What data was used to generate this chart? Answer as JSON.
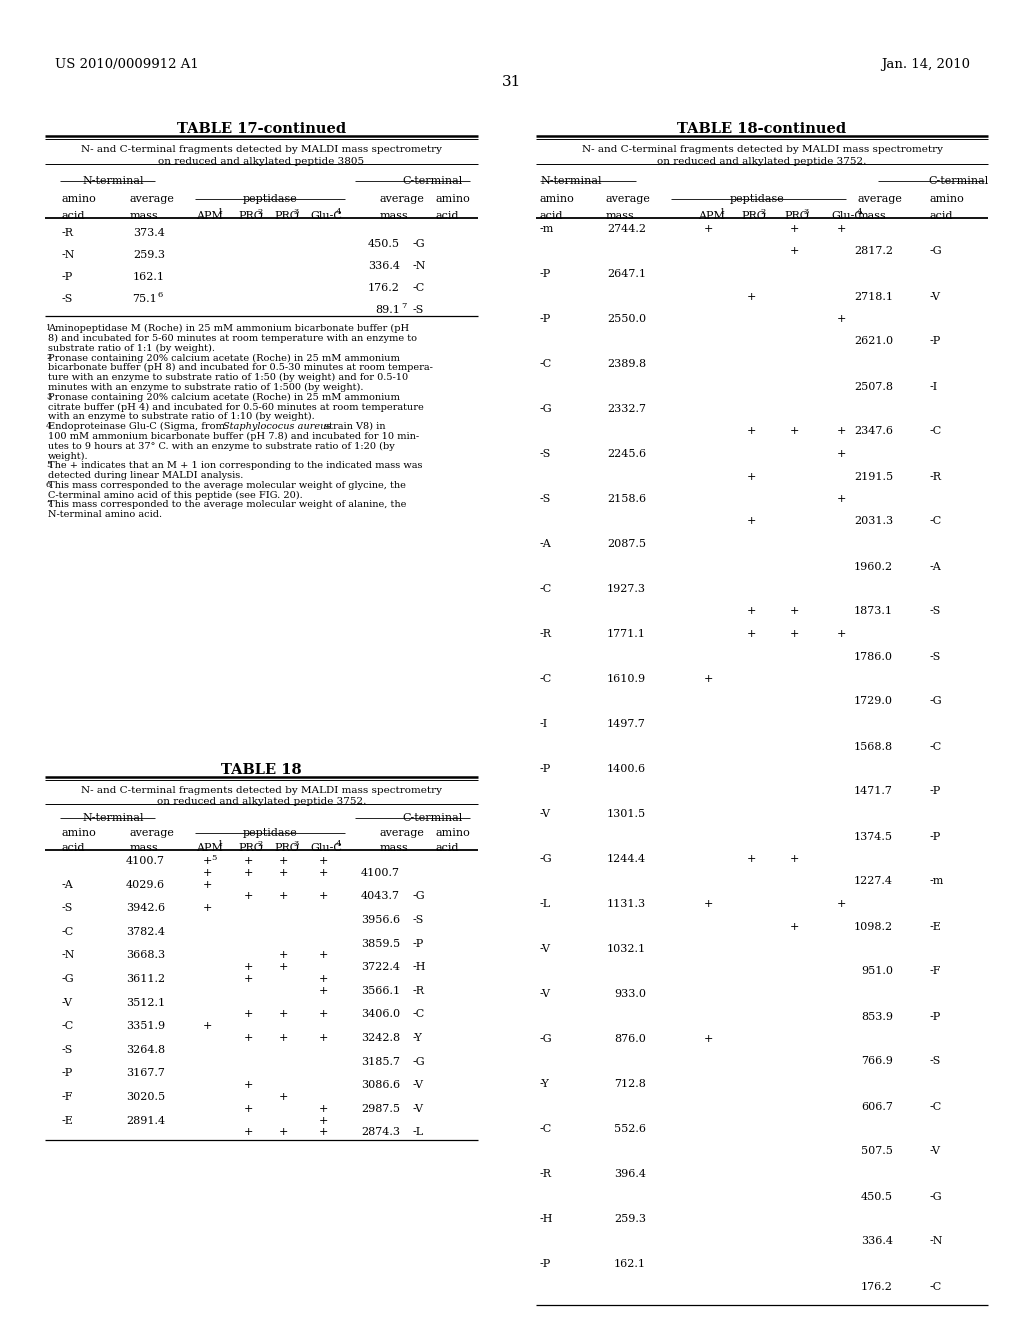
{
  "page_number": "31",
  "header_left": "US 2010/0009912 A1",
  "header_right": "Jan. 14, 2010",
  "bg": "#ffffff",
  "black": "#000000",
  "t17_title": "TABLE 17-continued",
  "t17_desc1": "N- and C-terminal fragments detected by MALDI mass spectrometry",
  "t17_desc2": "on reduced and alkylated peptide 3805",
  "t18_title": "TABLE 18",
  "t18_desc1": "N- and C-terminal fragments detected by MALDI mass spectrometry",
  "t18_desc2": "on reduced and alkylated peptide 3752.",
  "t18c_title": "TABLE 18-continued",
  "t18c_desc1": "N- and C-terminal fragments detected by MALDI mass spectrometry",
  "t18c_desc2": "on reduced and alkylated peptide 3752.",
  "fn1": "Aminopeptidase M (Roche) in 25 mM ammonium bicarbonate buffer (pH",
  "fn1b": "8) and incubated for 5-60 minutes at room temperature with an enzyme to",
  "fn1c": "substrate ratio of 1:1 (by weight).",
  "fn2": "Pronase containing 20% calcium acetate (Roche) in 25 mM ammonium",
  "fn2b": "bicarbonate buffer (pH 8) and incubated for 0.5-30 minutes at room tempera-",
  "fn2c": "ture with an enzyme to substrate ratio of 1:50 (by weight) and for 0.5-10",
  "fn2d": "minutes with an enzyme to substrate ratio of 1:500 (by weight).",
  "fn3": "Pronase containing 20% calcium acetate (Roche) in 25 mM ammonium",
  "fn3b": "citrate buffer (pH 4) and incubated for 0.5-60 minutes at room temperature",
  "fn3c": "with an enzyme to substrate ratio of 1:10 (by weight).",
  "fn4": "Endoproteinase Glu-C (Sigma, from ",
  "fn4_italic": "Staphylococus aureus",
  "fn4_end": " strain V8) in",
  "fn4b": "100 mM ammonium bicarbonate buffer (pH 7.8) and incubated for 10 min-",
  "fn4c": "utes to 9 hours at 37° C. with an enzyme to substrate ratio of 1:20 (by",
  "fn4d": "weight).",
  "fn5": "The + indicates that an M + 1 ion corresponding to the indicated mass was",
  "fn5b": "detected during linear MALDI analysis.",
  "fn6": "This mass corresponded to the average molecular weight of glycine, the",
  "fn6b": "C-terminal amino acid of this peptide (see FIG. 20).",
  "fn7": "This mass corresponded to the average molecular weight of alanine, the",
  "fn7b": "N-terminal amino acid."
}
